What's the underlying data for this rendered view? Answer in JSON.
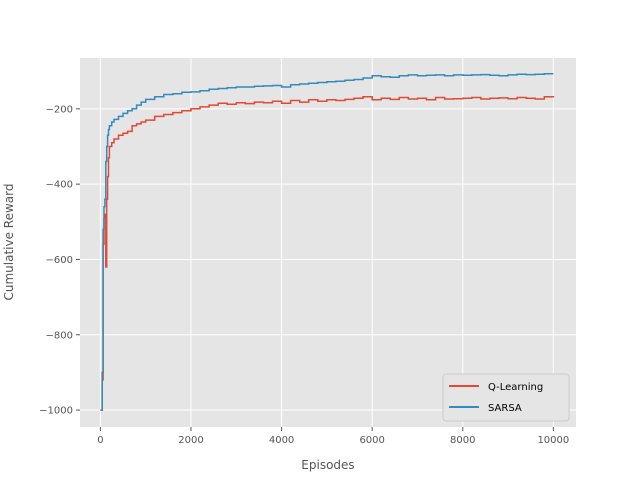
{
  "chart_data": {
    "type": "line",
    "title": "",
    "xlabel": "Episodes",
    "ylabel": "Cumulative Reward",
    "xlim": [
      -450,
      10500
    ],
    "ylim": [
      -1045,
      -65
    ],
    "x_ticks": [
      0,
      2000,
      4000,
      6000,
      8000,
      10000
    ],
    "x_tick_labels": [
      "0",
      "2000",
      "4000",
      "6000",
      "8000",
      "10000"
    ],
    "y_ticks": [
      -1000,
      -800,
      -600,
      -400,
      -200
    ],
    "y_tick_labels": [
      "−1000",
      "−800",
      "−600",
      "−400",
      "−200"
    ],
    "grid": true,
    "legend_position": "lower-right",
    "series": [
      {
        "name": "Q-Learning",
        "color": "#E24A33",
        "x": [
          0,
          20,
          40,
          60,
          80,
          100,
          120,
          140,
          160,
          180,
          200,
          250,
          300,
          400,
          500,
          600,
          700,
          800,
          900,
          1000,
          1200,
          1400,
          1600,
          1800,
          2000,
          2200,
          2400,
          2600,
          2800,
          3000,
          3200,
          3400,
          3600,
          3800,
          4000,
          4200,
          4400,
          4600,
          4800,
          5000,
          5200,
          5400,
          5600,
          5800,
          6000,
          6200,
          6400,
          6600,
          6800,
          7000,
          7200,
          7400,
          7600,
          7800,
          8000,
          8200,
          8400,
          8600,
          8800,
          9000,
          9200,
          9400,
          9600,
          9800,
          10000
        ],
        "values": [
          -1000,
          -1000,
          -920,
          -560,
          -490,
          -480,
          -620,
          -440,
          -380,
          -330,
          -300,
          -290,
          -280,
          -270,
          -265,
          -260,
          -245,
          -240,
          -235,
          -230,
          -220,
          -215,
          -210,
          -205,
          -200,
          -195,
          -190,
          -185,
          -188,
          -184,
          -186,
          -182,
          -184,
          -180,
          -185,
          -178,
          -182,
          -176,
          -180,
          -176,
          -178,
          -175,
          -172,
          -168,
          -176,
          -172,
          -175,
          -170,
          -174,
          -172,
          -176,
          -170,
          -174,
          -173,
          -172,
          -170,
          -174,
          -172,
          -171,
          -173,
          -170,
          -172,
          -174,
          -168,
          -170
        ]
      },
      {
        "name": "SARSA",
        "color": "#348ABD",
        "x": [
          0,
          20,
          40,
          60,
          80,
          100,
          120,
          140,
          160,
          180,
          200,
          250,
          300,
          400,
          500,
          600,
          700,
          800,
          900,
          1000,
          1200,
          1400,
          1600,
          1800,
          2000,
          2200,
          2400,
          2600,
          2800,
          3000,
          3200,
          3400,
          3600,
          3800,
          4000,
          4200,
          4400,
          4600,
          4800,
          5000,
          5200,
          5400,
          5600,
          5800,
          6000,
          6200,
          6400,
          6600,
          6800,
          7000,
          7200,
          7400,
          7600,
          7800,
          8000,
          8200,
          8400,
          8600,
          8800,
          9000,
          9200,
          9400,
          9600,
          9800,
          10000
        ],
        "values": [
          -1000,
          -1000,
          -900,
          -520,
          -460,
          -440,
          -340,
          -300,
          -270,
          -255,
          -245,
          -235,
          -228,
          -220,
          -212,
          -205,
          -200,
          -190,
          -182,
          -175,
          -168,
          -162,
          -160,
          -156,
          -155,
          -152,
          -148,
          -146,
          -144,
          -142,
          -142,
          -140,
          -139,
          -138,
          -142,
          -136,
          -134,
          -132,
          -130,
          -128,
          -127,
          -124,
          -122,
          -118,
          -112,
          -115,
          -116,
          -112,
          -110,
          -112,
          -111,
          -110,
          -112,
          -110,
          -111,
          -110,
          -109,
          -111,
          -112,
          -110,
          -108,
          -109,
          -108,
          -107,
          -107
        ]
      }
    ]
  }
}
